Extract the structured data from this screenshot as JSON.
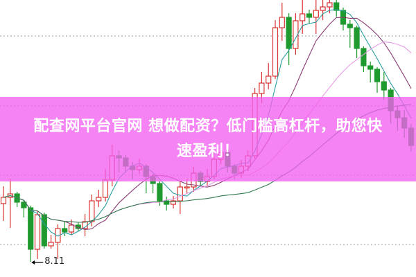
{
  "banner": {
    "line1": "配查网平台官网 想做配资？低门槛高杠杆，助您快",
    "line2": "速盈利！"
  },
  "chart_data": {
    "type": "candlestick",
    "ylim": [
      7.89,
      11.89
    ],
    "grid": "horizontal-dotted",
    "gridlines": [
      8.36,
      9.36,
      10.36,
      11.37
    ],
    "annotations": [
      {
        "label": "8.11",
        "type": "low-marker"
      }
    ],
    "colors": {
      "up": "#d9302f",
      "down": "#1f9a2e",
      "ma_fast": "#2a9da0",
      "ma_mid": "#8a3b72",
      "ma_slow": "#e79be6",
      "ma_long": "#2f7a4c"
    },
    "moving_average_periods": [
      5,
      10,
      20,
      40
    ],
    "ohlc": [
      [
        8.95,
        9.2,
        8.7,
        9.04
      ],
      [
        9.04,
        9.3,
        8.6,
        9.09
      ],
      [
        9.09,
        9.12,
        8.9,
        8.97
      ],
      [
        8.97,
        9.0,
        8.75,
        8.89
      ],
      [
        8.89,
        8.92,
        8.11,
        8.29
      ],
      [
        8.29,
        8.84,
        8.15,
        8.79
      ],
      [
        8.79,
        8.82,
        8.3,
        8.34
      ],
      [
        8.34,
        8.5,
        8.3,
        8.39
      ],
      [
        8.39,
        8.65,
        8.15,
        8.59
      ],
      [
        8.59,
        8.7,
        8.48,
        8.54
      ],
      [
        8.54,
        8.72,
        8.5,
        8.64
      ],
      [
        8.64,
        8.68,
        8.55,
        8.59
      ],
      [
        8.59,
        8.8,
        8.48,
        8.69
      ],
      [
        8.69,
        9.08,
        8.62,
        8.99
      ],
      [
        8.99,
        9.15,
        8.9,
        9.04
      ],
      [
        9.04,
        9.45,
        8.98,
        9.29
      ],
      [
        9.29,
        9.8,
        9.2,
        9.64
      ],
      [
        9.64,
        9.72,
        9.4,
        9.61
      ],
      [
        9.61,
        9.65,
        9.4,
        9.49
      ],
      [
        9.49,
        9.55,
        9.3,
        9.44
      ],
      [
        9.44,
        9.6,
        9.38,
        9.49
      ],
      [
        9.49,
        9.52,
        9.1,
        9.34
      ],
      [
        9.34,
        9.38,
        9.1,
        9.24
      ],
      [
        9.24,
        9.28,
        8.92,
        8.99
      ],
      [
        8.99,
        9.05,
        8.85,
        8.94
      ],
      [
        8.94,
        9.06,
        8.88,
        8.99
      ],
      [
        8.99,
        9.28,
        8.8,
        9.19
      ],
      [
        9.19,
        9.3,
        9.1,
        9.19
      ],
      [
        9.19,
        9.48,
        9.12,
        9.39
      ],
      [
        9.39,
        9.42,
        9.2,
        9.27
      ],
      [
        9.27,
        9.45,
        9.2,
        9.34
      ],
      [
        9.34,
        9.7,
        9.3,
        9.59
      ],
      [
        9.59,
        9.82,
        9.52,
        9.69
      ],
      [
        9.69,
        9.72,
        9.4,
        9.49
      ],
      [
        9.49,
        9.52,
        9.3,
        9.39
      ],
      [
        9.39,
        9.58,
        9.32,
        9.49
      ],
      [
        9.49,
        9.72,
        9.42,
        9.64
      ],
      [
        9.64,
        10.62,
        9.6,
        10.54
      ],
      [
        10.54,
        10.85,
        10.4,
        10.69
      ],
      [
        10.69,
        10.98,
        10.6,
        10.79
      ],
      [
        10.79,
        11.6,
        10.75,
        11.49
      ],
      [
        11.49,
        11.85,
        11.3,
        11.64
      ],
      [
        11.64,
        11.7,
        10.95,
        11.19
      ],
      [
        11.19,
        11.7,
        11.1,
        11.59
      ],
      [
        11.59,
        11.89,
        11.4,
        11.69
      ],
      [
        11.69,
        11.75,
        11.55,
        11.64
      ],
      [
        11.64,
        11.89,
        11.4,
        11.74
      ],
      [
        11.74,
        11.89,
        11.6,
        11.79
      ],
      [
        11.79,
        11.89,
        11.7,
        11.85
      ],
      [
        11.85,
        11.89,
        11.65,
        11.74
      ],
      [
        11.74,
        11.78,
        11.45,
        11.54
      ],
      [
        11.54,
        11.6,
        11.2,
        11.49
      ],
      [
        11.49,
        11.52,
        11.05,
        11.19
      ],
      [
        11.19,
        11.22,
        10.85,
        10.94
      ],
      [
        10.94,
        11.0,
        10.7,
        10.89
      ],
      [
        10.89,
        10.92,
        10.55,
        10.71
      ],
      [
        10.71,
        10.85,
        10.45,
        10.59
      ],
      [
        10.59,
        10.62,
        10.1,
        10.29
      ],
      [
        10.29,
        10.35,
        10.0,
        10.19
      ],
      [
        10.19,
        10.3,
        9.9,
        10.04
      ],
      [
        10.04,
        10.1,
        9.7,
        9.79
      ]
    ]
  }
}
